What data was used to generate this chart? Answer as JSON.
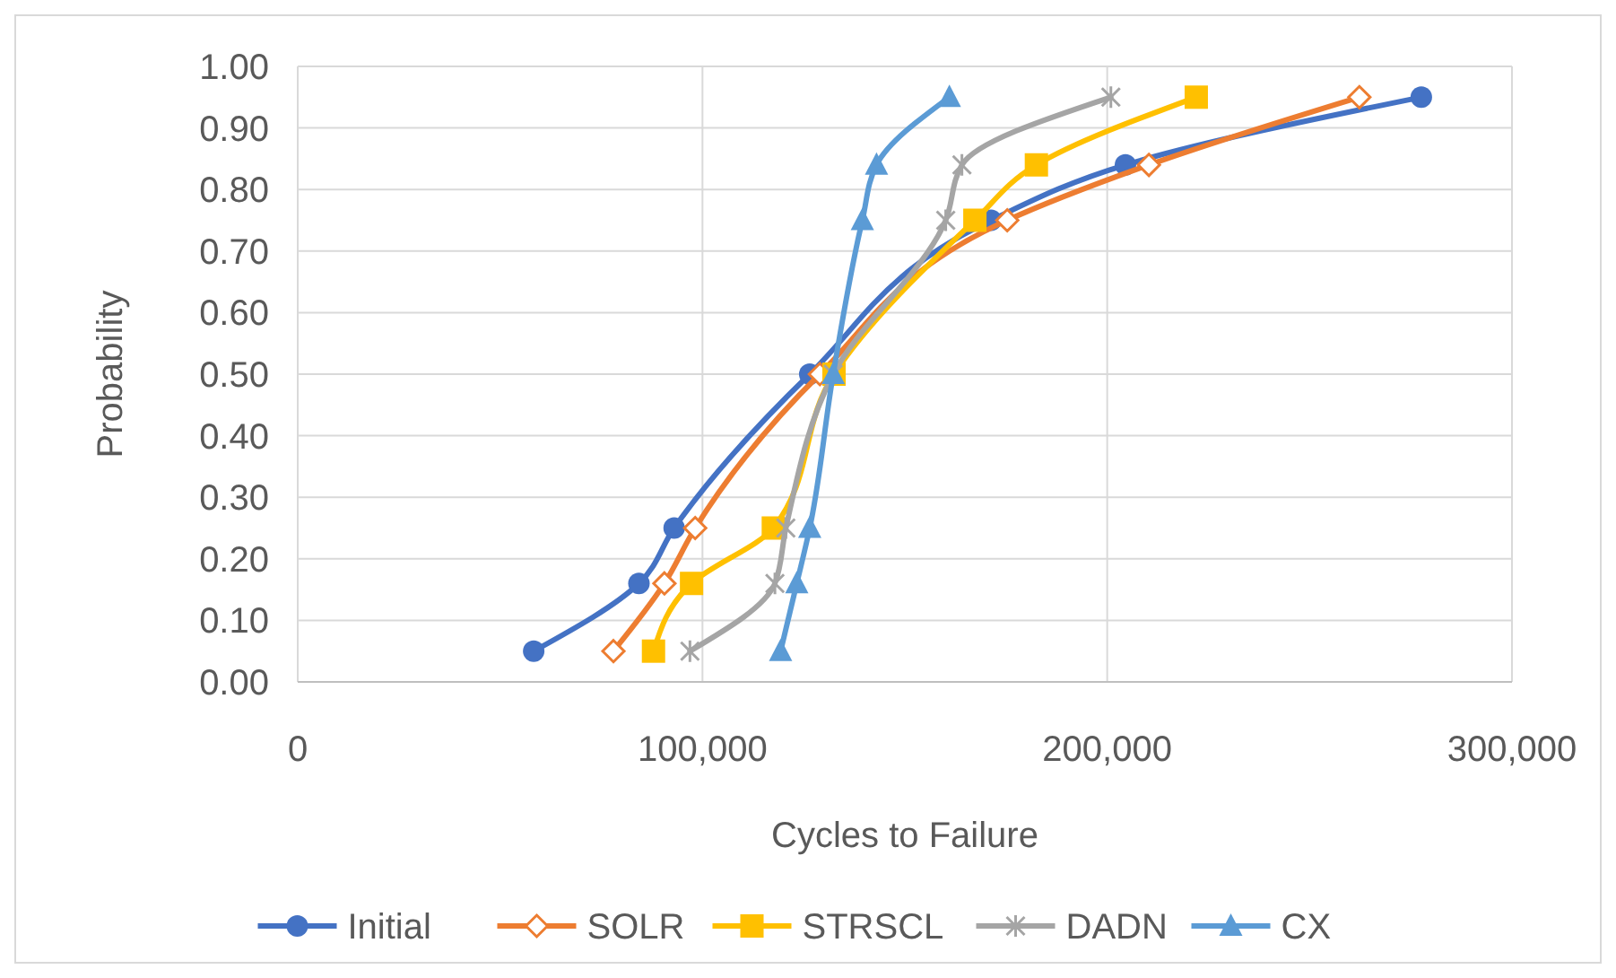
{
  "chart_data": {
    "type": "line",
    "xlabel": "Cycles to Failure",
    "ylabel": "Probability",
    "xlim": [
      0,
      300000
    ],
    "xticks": [
      {
        "value": 0,
        "label": "0"
      },
      {
        "value": 100000,
        "label": "100,000"
      },
      {
        "value": 200000,
        "label": "200,000"
      },
      {
        "value": 300000,
        "label": "300,000"
      }
    ],
    "ylim": [
      0,
      1
    ],
    "yticks": [
      {
        "value": 0,
        "label": "0.00"
      },
      {
        "value": 0.1,
        "label": "0.10"
      },
      {
        "value": 0.2,
        "label": "0.20"
      },
      {
        "value": 0.3,
        "label": "0.30"
      },
      {
        "value": 0.4,
        "label": "0.40"
      },
      {
        "value": 0.5,
        "label": "0.50"
      },
      {
        "value": 0.6,
        "label": "0.60"
      },
      {
        "value": 0.7,
        "label": "0.70"
      },
      {
        "value": 0.8,
        "label": "0.80"
      },
      {
        "value": 0.9,
        "label": "0.90"
      },
      {
        "value": 1,
        "label": "1.00"
      }
    ],
    "grid": true,
    "legend": "bottom",
    "series": [
      {
        "name": "Initial",
        "color": "#4472c4",
        "marker": "circle",
        "x": [
          58300,
          84300,
          93000,
          126500,
          171300,
          204500,
          277600
        ],
        "values": [
          0.05,
          0.16,
          0.25,
          0.5,
          0.75,
          0.84,
          0.95
        ]
      },
      {
        "name": "SOLR",
        "color": "#ed7d31",
        "marker": "diamond",
        "x": [
          78000,
          90600,
          98200,
          129000,
          175300,
          210300,
          262300
        ],
        "values": [
          0.05,
          0.16,
          0.25,
          0.5,
          0.75,
          0.84,
          0.95
        ]
      },
      {
        "name": "STRSCL",
        "color": "#ffc000",
        "marker": "square",
        "x": [
          87900,
          97300,
          117500,
          132500,
          167300,
          182500,
          222000
        ],
        "values": [
          0.05,
          0.16,
          0.25,
          0.5,
          0.75,
          0.84,
          0.95
        ]
      },
      {
        "name": "DADN",
        "color": "#a5a5a5",
        "marker": "cross",
        "x": [
          96900,
          117900,
          120600,
          132300,
          160100,
          164100,
          200900
        ],
        "values": [
          0.05,
          0.16,
          0.25,
          0.5,
          0.75,
          0.84,
          0.95
        ]
      },
      {
        "name": "CX",
        "color": "#5b9bd5",
        "marker": "triangle",
        "x": [
          119300,
          123300,
          126500,
          132300,
          139500,
          143000,
          161000
        ],
        "values": [
          0.05,
          0.16,
          0.25,
          0.5,
          0.75,
          0.84,
          0.95
        ]
      }
    ]
  }
}
